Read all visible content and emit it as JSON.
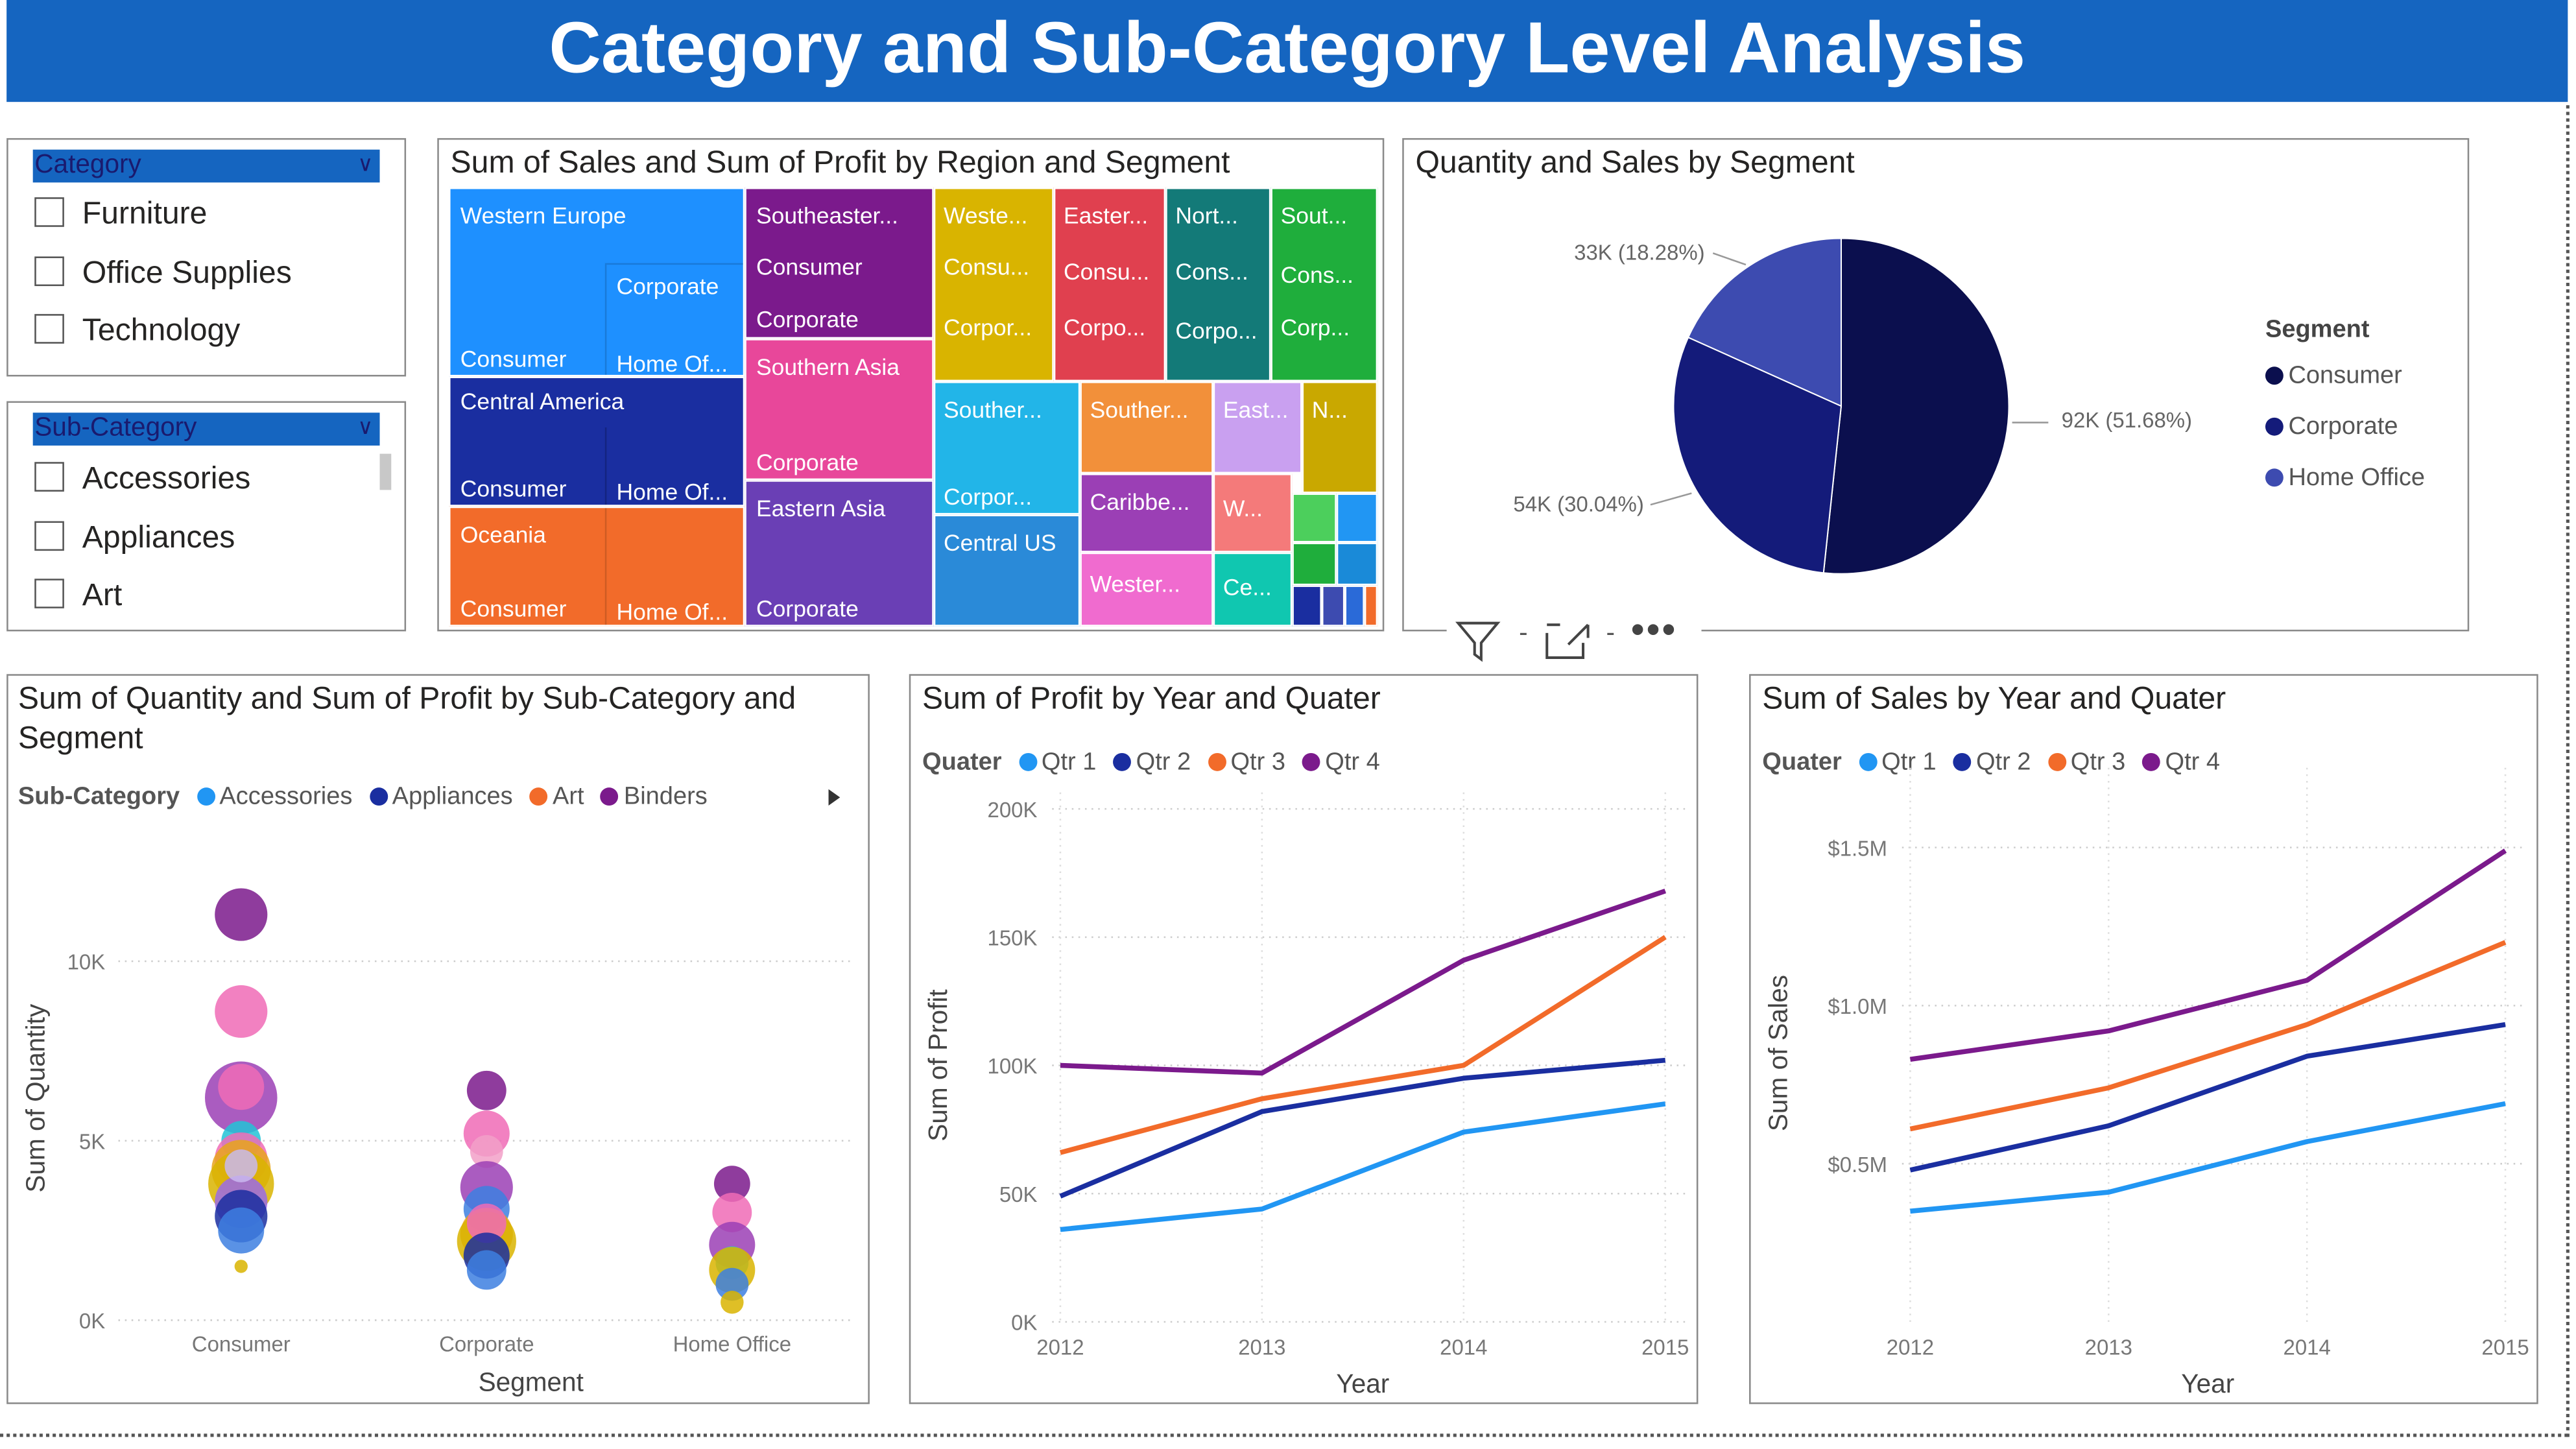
{
  "header": {
    "title": "Category and Sub-Category Level Analysis"
  },
  "slicer_category": {
    "title": "Category",
    "items": [
      "Furniture",
      "Office Supplies",
      "Technology"
    ]
  },
  "slicer_subcategory": {
    "title": "Sub-Category",
    "items": [
      "Accessories",
      "Appliances",
      "Art"
    ]
  },
  "treemap": {
    "title": "Sum of Sales and Sum of Profit by Region and Segment",
    "labels": {
      "western_europe": "Western Europe",
      "we_corporate": "Corporate",
      "we_consumer": "Consumer",
      "we_home": "Home Of...",
      "central_america": "Central America",
      "ca_consumer": "Consumer",
      "ca_home": "Home Of...",
      "oceania": "Oceania",
      "oc_consumer": "Consumer",
      "oc_home": "Home Of...",
      "southeastern": "Southeaster...",
      "se_consumer": "Consumer",
      "se_corporate": "Corporate",
      "southern_asia": "Southern Asia",
      "sa_corporate": "Corporate",
      "eastern_asia": "Eastern Asia",
      "ea_corporate": "Corporate",
      "weste": "Weste...",
      "weste_consu": "Consu...",
      "weste_corpor": "Corpor...",
      "easter": "Easter...",
      "easter_consu": "Consu...",
      "easter_corpo": "Corpo...",
      "north": "Nort...",
      "north_cons": "Cons...",
      "north_corpo": "Corpo...",
      "south": "Sout...",
      "south_cons": "Cons...",
      "south_corp": "Corp...",
      "souther1": "Souther...",
      "souther1_corpor": "Corpor...",
      "central_us": "Central US",
      "souther2": "Souther...",
      "caribbe": "Caribbe...",
      "wester": "Wester...",
      "east": "East...",
      "n": "N...",
      "w": "W...",
      "ce": "Ce..."
    }
  },
  "pie": {
    "title": "Quantity and Sales by Segment",
    "legend_title": "Segment",
    "slices": [
      {
        "name": "Consumer",
        "percent": 51.68,
        "label": "92K (51.68%)",
        "color": "#0b0f4e"
      },
      {
        "name": "Corporate",
        "percent": 30.04,
        "label": "54K (30.04%)",
        "color": "#141b7a"
      },
      {
        "name": "Home Office",
        "percent": 18.28,
        "label": "33K (18.28%)",
        "color": "#3d4bb0"
      }
    ]
  },
  "visual_toolbar": {
    "filter": "filter-icon",
    "focus": "focus-mode-icon",
    "more": "more-options-icon"
  },
  "scatter": {
    "title_line1": "Sum of Quantity and Sum of Profit by Sub-Category and",
    "title_line2": "Segment",
    "legend_title": "Sub-Category",
    "legend": [
      {
        "name": "Accessories",
        "color": "#2196f3"
      },
      {
        "name": "Appliances",
        "color": "#1a2ea0"
      },
      {
        "name": "Art",
        "color": "#f26b2a"
      },
      {
        "name": "Binders",
        "color": "#7b1a8c"
      }
    ],
    "xlabel": "Segment",
    "ylabel": "Sum of Quantity",
    "y_ticks": [
      "0K",
      "5K",
      "10K"
    ],
    "categories": [
      "Consumer",
      "Corporate",
      "Home Office"
    ]
  },
  "chart_data": [
    {
      "type": "scatter",
      "title": "Sum of Quantity and Sum of Profit by Sub-Category and Segment",
      "xlabel": "Segment",
      "ylabel": "Sum of Quantity",
      "ylim": [
        0,
        12000
      ],
      "categories": [
        "Consumer",
        "Corporate",
        "Home Office"
      ],
      "points": [
        {
          "x": "Consumer",
          "y": 11300,
          "size": 16,
          "color": "#7b1a8c"
        },
        {
          "x": "Consumer",
          "y": 8600,
          "size": 16,
          "color": "#f06bb6"
        },
        {
          "x": "Consumer",
          "y": 6200,
          "size": 22,
          "color": "#9b3fb5"
        },
        {
          "x": "Consumer",
          "y": 6500,
          "size": 14,
          "color": "#f06bb6"
        },
        {
          "x": "Consumer",
          "y": 5000,
          "size": 12,
          "color": "#22c3d6"
        },
        {
          "x": "Consumer",
          "y": 4500,
          "size": 16,
          "color": "#f06bb6"
        },
        {
          "x": "Consumer",
          "y": 4200,
          "size": 18,
          "color": "#e8a41c"
        },
        {
          "x": "Consumer",
          "y": 3800,
          "size": 20,
          "color": "#d9b400"
        },
        {
          "x": "Consumer",
          "y": 3300,
          "size": 16,
          "color": "#9b6be8"
        },
        {
          "x": "Consumer",
          "y": 2900,
          "size": 16,
          "color": "#1a2ea0"
        },
        {
          "x": "Consumer",
          "y": 2500,
          "size": 14,
          "color": "#3d7fe0"
        },
        {
          "x": "Consumer",
          "y": 4300,
          "size": 10,
          "color": "#c9b8ee"
        },
        {
          "x": "Consumer",
          "y": 1500,
          "size": 4,
          "color": "#d9b400"
        },
        {
          "x": "Corporate",
          "y": 6400,
          "size": 12,
          "color": "#7b1a8c"
        },
        {
          "x": "Corporate",
          "y": 5200,
          "size": 14,
          "color": "#f06bb6"
        },
        {
          "x": "Corporate",
          "y": 4700,
          "size": 10,
          "color": "#f2a0c8"
        },
        {
          "x": "Corporate",
          "y": 3700,
          "size": 16,
          "color": "#9b3fb5"
        },
        {
          "x": "Corporate",
          "y": 3100,
          "size": 14,
          "color": "#3d7fe0"
        },
        {
          "x": "Corporate",
          "y": 2400,
          "size": 16,
          "color": "#e8a41c"
        },
        {
          "x": "Corporate",
          "y": 2200,
          "size": 18,
          "color": "#d9b400"
        },
        {
          "x": "Corporate",
          "y": 2700,
          "size": 12,
          "color": "#f06bb6"
        },
        {
          "x": "Corporate",
          "y": 1800,
          "size": 14,
          "color": "#1a2ea0"
        },
        {
          "x": "Corporate",
          "y": 1400,
          "size": 12,
          "color": "#3d7fe0"
        },
        {
          "x": "Home Office",
          "y": 3800,
          "size": 11,
          "color": "#7b1a8c"
        },
        {
          "x": "Home Office",
          "y": 3000,
          "size": 12,
          "color": "#f06bb6"
        },
        {
          "x": "Home Office",
          "y": 2100,
          "size": 14,
          "color": "#9b3fb5"
        },
        {
          "x": "Home Office",
          "y": 1600,
          "size": 10,
          "color": "#22c3d6"
        },
        {
          "x": "Home Office",
          "y": 1400,
          "size": 14,
          "color": "#d9b400"
        },
        {
          "x": "Home Office",
          "y": 1000,
          "size": 10,
          "color": "#3d7fe0"
        },
        {
          "x": "Home Office",
          "y": 500,
          "size": 7,
          "color": "#d9b400"
        }
      ]
    },
    {
      "type": "line",
      "title": "Sum of Profit by Year and Quater",
      "xlabel": "Year",
      "ylabel": "Sum of Profit",
      "legend_title": "Quater",
      "x": [
        "2012",
        "2013",
        "2014",
        "2015"
      ],
      "y_ticks": [
        "0K",
        "50K",
        "100K",
        "150K",
        "200K"
      ],
      "ylim": [
        0,
        200000
      ],
      "series": [
        {
          "name": "Qtr 1",
          "color": "#2196f3",
          "values": [
            36000,
            44000,
            74000,
            85000
          ]
        },
        {
          "name": "Qtr 2",
          "color": "#1a2ea0",
          "values": [
            49000,
            82000,
            95000,
            102000
          ]
        },
        {
          "name": "Qtr 3",
          "color": "#f26b2a",
          "values": [
            66000,
            87000,
            100000,
            150000
          ]
        },
        {
          "name": "Qtr 4",
          "color": "#7b1a8c",
          "values": [
            100000,
            97000,
            141000,
            168000
          ]
        }
      ]
    },
    {
      "type": "line",
      "title": "Sum of Sales by Year and Quater",
      "xlabel": "Year",
      "ylabel": "Sum of Sales",
      "legend_title": "Quater",
      "x": [
        "2012",
        "2013",
        "2014",
        "2015"
      ],
      "y_ticks": [
        "$0.5M",
        "$1.0M",
        "$1.5M"
      ],
      "ylim": [
        0,
        1700000
      ],
      "series": [
        {
          "name": "Qtr 1",
          "color": "#2196f3",
          "values": [
            350000,
            410000,
            570000,
            690000
          ]
        },
        {
          "name": "Qtr 2",
          "color": "#1a2ea0",
          "values": [
            480000,
            620000,
            840000,
            940000
          ]
        },
        {
          "name": "Qtr 3",
          "color": "#f26b2a",
          "values": [
            610000,
            740000,
            940000,
            1200000
          ]
        },
        {
          "name": "Qtr 4",
          "color": "#7b1a8c",
          "values": [
            830000,
            920000,
            1080000,
            1490000
          ]
        }
      ]
    }
  ]
}
